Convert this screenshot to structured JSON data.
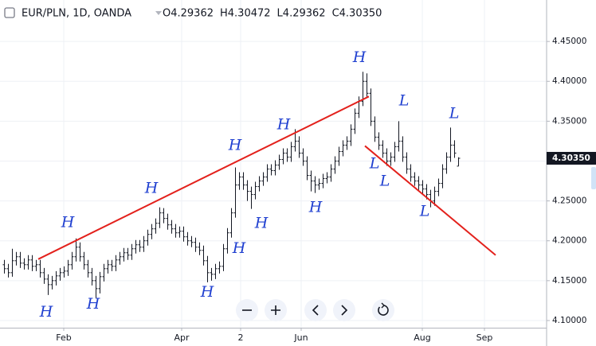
{
  "chart_data": {
    "type": "ohlc",
    "title": "EUR/PLN, 1D, OANDA",
    "ohlc_legend": [
      {
        "label": "O",
        "value": "4.29362"
      },
      {
        "label": "H",
        "value": "4.30472"
      },
      {
        "label": "L",
        "value": "4.29362"
      },
      {
        "label": "C",
        "value": "4.30350"
      }
    ],
    "color": "#131722",
    "open": [
      4.17,
      4.165,
      4.16,
      4.175,
      4.18,
      4.172,
      4.17,
      4.176,
      4.168,
      4.17,
      4.16,
      4.152,
      4.145,
      4.15,
      4.156,
      4.16,
      4.162,
      4.17,
      4.18,
      4.192,
      4.18,
      4.17,
      4.16,
      4.15,
      4.14,
      4.155,
      4.165,
      4.17,
      4.168,
      4.176,
      4.18,
      4.185,
      4.182,
      4.19,
      4.195,
      4.192,
      4.2,
      4.208,
      4.215,
      4.222,
      4.235,
      4.228,
      4.22,
      4.215,
      4.21,
      4.212,
      4.205,
      4.2,
      4.198,
      4.192,
      4.188,
      4.175,
      4.16,
      4.158,
      4.165,
      4.168,
      4.19,
      4.21,
      4.235,
      4.27,
      4.28,
      4.27,
      4.262,
      4.258,
      4.268,
      4.275,
      4.28,
      4.29,
      4.288,
      4.295,
      4.302,
      4.31,
      4.305,
      4.318,
      4.325,
      4.31,
      4.3,
      4.282,
      4.275,
      4.27,
      4.272,
      4.278,
      4.28,
      4.29,
      4.3,
      4.312,
      4.32,
      4.325,
      4.34,
      4.36,
      4.375,
      4.4,
      4.385,
      4.35,
      4.33,
      4.32,
      4.31,
      4.3,
      4.305,
      4.318,
      4.325,
      4.305,
      4.29,
      4.28,
      4.275,
      4.27,
      4.265,
      4.258,
      4.25,
      4.262,
      4.272,
      4.29,
      4.305,
      4.32,
      4.29362
    ],
    "high": [
      4.176,
      4.171,
      4.19,
      4.186,
      4.186,
      4.178,
      4.182,
      4.182,
      4.176,
      4.176,
      4.166,
      4.158,
      4.156,
      4.162,
      4.166,
      4.168,
      4.176,
      4.186,
      4.203,
      4.198,
      4.186,
      4.176,
      4.166,
      4.156,
      4.161,
      4.171,
      4.176,
      4.176,
      4.182,
      4.186,
      4.191,
      4.191,
      4.196,
      4.201,
      4.201,
      4.206,
      4.214,
      4.221,
      4.228,
      4.242,
      4.241,
      4.234,
      4.226,
      4.221,
      4.218,
      4.218,
      4.211,
      4.206,
      4.204,
      4.198,
      4.194,
      4.181,
      4.166,
      4.171,
      4.174,
      4.196,
      4.216,
      4.241,
      4.292,
      4.286,
      4.286,
      4.276,
      4.268,
      4.274,
      4.281,
      4.286,
      4.296,
      4.296,
      4.301,
      4.308,
      4.316,
      4.316,
      4.324,
      4.34,
      4.331,
      4.316,
      4.306,
      4.288,
      4.281,
      4.278,
      4.284,
      4.286,
      4.296,
      4.306,
      4.318,
      4.326,
      4.331,
      4.346,
      4.366,
      4.381,
      4.412,
      4.41,
      4.391,
      4.356,
      4.336,
      4.326,
      4.316,
      4.311,
      4.324,
      4.35,
      4.331,
      4.311,
      4.296,
      4.286,
      4.281,
      4.276,
      4.271,
      4.264,
      4.268,
      4.278,
      4.296,
      4.311,
      4.342,
      4.326,
      4.30472
    ],
    "low": [
      4.159,
      4.154,
      4.155,
      4.169,
      4.166,
      4.164,
      4.164,
      4.162,
      4.162,
      4.154,
      4.146,
      4.132,
      4.139,
      4.144,
      4.15,
      4.154,
      4.156,
      4.164,
      4.174,
      4.174,
      4.164,
      4.154,
      4.144,
      4.128,
      4.134,
      4.149,
      4.159,
      4.162,
      4.162,
      4.17,
      4.174,
      4.176,
      4.176,
      4.184,
      4.186,
      4.186,
      4.194,
      4.202,
      4.209,
      4.216,
      4.222,
      4.214,
      4.209,
      4.204,
      4.204,
      4.199,
      4.194,
      4.192,
      4.186,
      4.182,
      4.169,
      4.148,
      4.15,
      4.152,
      4.159,
      4.162,
      4.184,
      4.204,
      4.229,
      4.264,
      4.264,
      4.25,
      4.24,
      4.252,
      4.262,
      4.269,
      4.274,
      4.282,
      4.282,
      4.289,
      4.296,
      4.299,
      4.299,
      4.312,
      4.304,
      4.294,
      4.276,
      4.262,
      4.26,
      4.264,
      4.266,
      4.272,
      4.274,
      4.284,
      4.294,
      4.306,
      4.314,
      4.319,
      4.334,
      4.354,
      4.369,
      4.379,
      4.344,
      4.324,
      4.314,
      4.304,
      4.294,
      4.294,
      4.299,
      4.312,
      4.299,
      4.284,
      4.274,
      4.269,
      4.264,
      4.259,
      4.252,
      4.242,
      4.244,
      4.256,
      4.266,
      4.284,
      4.299,
      4.304,
      4.29362
    ],
    "close": [
      4.165,
      4.16,
      4.175,
      4.18,
      4.172,
      4.17,
      4.176,
      4.168,
      4.17,
      4.16,
      4.152,
      4.145,
      4.15,
      4.156,
      4.16,
      4.162,
      4.17,
      4.18,
      4.192,
      4.18,
      4.17,
      4.16,
      4.15,
      4.14,
      4.155,
      4.165,
      4.17,
      4.168,
      4.176,
      4.18,
      4.185,
      4.182,
      4.19,
      4.195,
      4.192,
      4.2,
      4.208,
      4.215,
      4.222,
      4.235,
      4.228,
      4.22,
      4.215,
      4.21,
      4.212,
      4.205,
      4.2,
      4.198,
      4.192,
      4.188,
      4.175,
      4.16,
      4.158,
      4.165,
      4.168,
      4.19,
      4.21,
      4.235,
      4.27,
      4.28,
      4.27,
      4.262,
      4.258,
      4.268,
      4.275,
      4.28,
      4.29,
      4.288,
      4.295,
      4.302,
      4.31,
      4.305,
      4.318,
      4.325,
      4.31,
      4.3,
      4.282,
      4.275,
      4.27,
      4.272,
      4.278,
      4.28,
      4.29,
      4.3,
      4.312,
      4.32,
      4.325,
      4.34,
      4.36,
      4.375,
      4.4,
      4.385,
      4.35,
      4.33,
      4.32,
      4.31,
      4.3,
      4.305,
      4.318,
      4.325,
      4.305,
      4.29,
      4.28,
      4.275,
      4.27,
      4.265,
      4.258,
      4.25,
      4.262,
      4.272,
      4.29,
      4.305,
      4.32,
      4.31,
      4.3035
    ],
    "xlim": [
      -1,
      136
    ],
    "xticks": [
      {
        "value": 15,
        "label": "Feb"
      },
      {
        "value": 44.6,
        "label": "Apr"
      },
      {
        "value": 59.4,
        "label": "2"
      },
      {
        "value": 74.6,
        "label": "Jun"
      },
      {
        "value": 105,
        "label": "Aug"
      },
      {
        "value": 120.6,
        "label": "Sep"
      }
    ],
    "ylim": [
      4.091,
      4.502
    ],
    "yticks": [
      {
        "value": 4.1,
        "label": "4.10000"
      },
      {
        "value": 4.15,
        "label": "4.15000"
      },
      {
        "value": 4.2,
        "label": "4.20000"
      },
      {
        "value": 4.25,
        "label": "4.25000"
      },
      {
        "value": 4.3,
        "label": "4.30000"
      },
      {
        "value": 4.35,
        "label": "4.35000"
      },
      {
        "value": 4.4,
        "label": "4.40000"
      },
      {
        "value": 4.45,
        "label": "4.45000"
      }
    ],
    "grid": true,
    "last_price": {
      "value": 4.3035,
      "label": "4.30350"
    },
    "trendline_color": "#e3211c",
    "trendlines": [
      {
        "x": [
          8.6,
          91.6
        ],
        "y": [
          4.177,
          4.381
        ]
      },
      {
        "x": [
          90.6,
          123.4
        ],
        "y": [
          4.319,
          4.182
        ]
      }
    ],
    "annotation_color": "#1f3fd0",
    "annotations": [
      {
        "text": "H",
        "x": 16,
        "y": 4.222
      },
      {
        "text": "H",
        "x": 10.6,
        "y": 4.11
      },
      {
        "text": "H",
        "x": 22.4,
        "y": 4.12
      },
      {
        "text": "H",
        "x": 37,
        "y": 4.265
      },
      {
        "text": "H",
        "x": 51,
        "y": 4.135
      },
      {
        "text": "H",
        "x": 58,
        "y": 4.319
      },
      {
        "text": "H",
        "x": 59,
        "y": 4.19
      },
      {
        "text": "H",
        "x": 64.6,
        "y": 4.221
      },
      {
        "text": "H",
        "x": 70.2,
        "y": 4.345
      },
      {
        "text": "H",
        "x": 78.2,
        "y": 4.241
      },
      {
        "text": "H",
        "x": 89.2,
        "y": 4.429
      },
      {
        "text": "L",
        "x": 100.4,
        "y": 4.375
      },
      {
        "text": "L",
        "x": 113,
        "y": 4.359
      },
      {
        "text": "L",
        "x": 93,
        "y": 4.296
      },
      {
        "text": "L",
        "x": 95.6,
        "y": 4.274
      },
      {
        "text": "L",
        "x": 105.6,
        "y": 4.236
      }
    ]
  }
}
